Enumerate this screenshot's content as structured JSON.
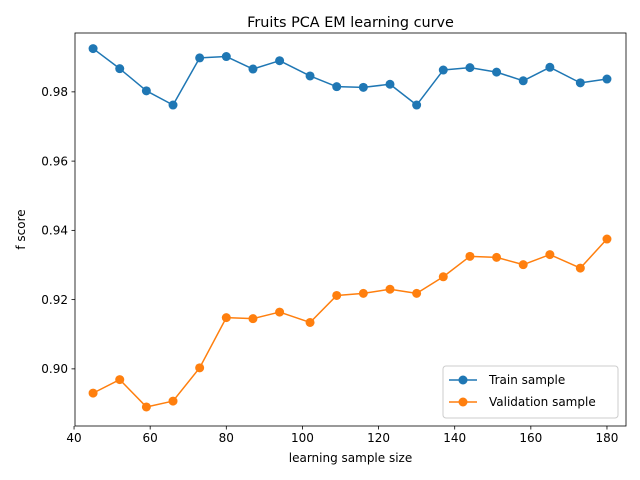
{
  "chart_data": {
    "type": "line",
    "title": "Fruits PCA EM learning curve",
    "xlabel": "learning sample size",
    "ylabel": "f score",
    "xlim": [
      40.25,
      185.0
    ],
    "ylim": [
      0.8835,
      0.997
    ],
    "xticks": [
      40,
      60,
      80,
      100,
      120,
      140,
      160,
      180
    ],
    "yticks": [
      0.9,
      0.92,
      0.94,
      0.96,
      0.98
    ],
    "xtick_labels": [
      "40",
      "60",
      "80",
      "100",
      "120",
      "140",
      "160",
      "180"
    ],
    "ytick_labels": [
      "0.90",
      "0.92",
      "0.94",
      "0.96",
      "0.98"
    ],
    "x": [
      45,
      52,
      59,
      66,
      73,
      80,
      87,
      94,
      102,
      109,
      116,
      123,
      130,
      137,
      144,
      151,
      158,
      165,
      173,
      180
    ],
    "series": [
      {
        "name": "Train sample",
        "color": "#1f77b4",
        "values": [
          0.9925,
          0.9867,
          0.9803,
          0.9762,
          0.9898,
          0.9902,
          0.9866,
          0.989,
          0.9846,
          0.9815,
          0.9813,
          0.9822,
          0.9762,
          0.9863,
          0.987,
          0.9857,
          0.9832,
          0.9871,
          0.9826,
          0.9837
        ]
      },
      {
        "name": "Validation sample",
        "color": "#ff7f0e",
        "values": [
          0.893,
          0.8969,
          0.889,
          0.8907,
          0.9003,
          0.9148,
          0.9145,
          0.9164,
          0.9134,
          0.9212,
          0.9218,
          0.923,
          0.9218,
          0.9266,
          0.9325,
          0.9322,
          0.9301,
          0.933,
          0.9291,
          0.9375
        ]
      }
    ],
    "grid": false,
    "legend_position": "lower-right"
  }
}
